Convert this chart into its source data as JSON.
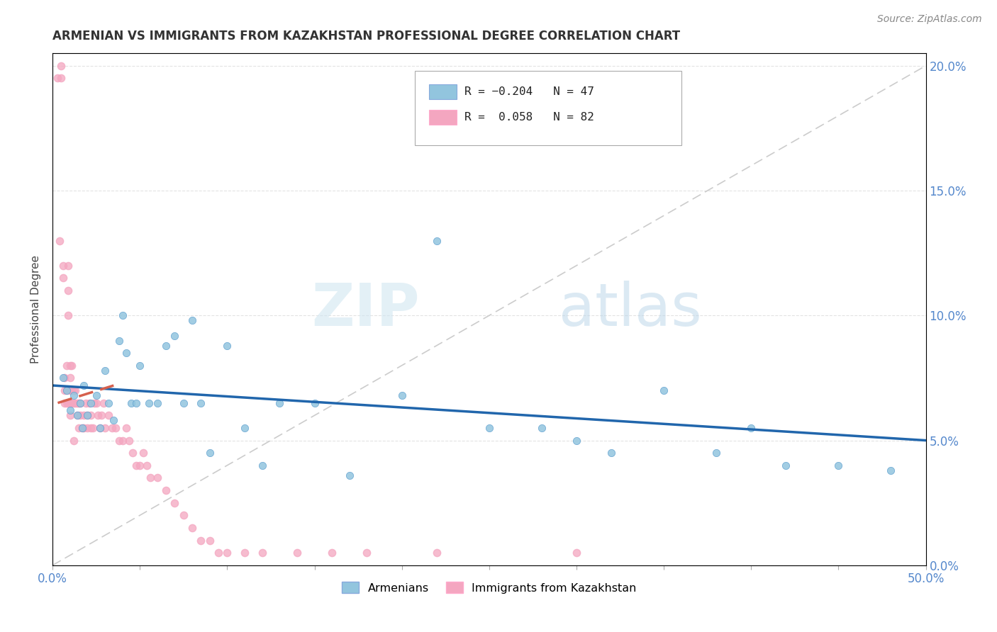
{
  "title": "ARMENIAN VS IMMIGRANTS FROM KAZAKHSTAN PROFESSIONAL DEGREE CORRELATION CHART",
  "source": "Source: ZipAtlas.com",
  "ylabel": "Professional Degree",
  "right_yticklabels": [
    "0.0%",
    "5.0%",
    "10.0%",
    "15.0%",
    "20.0%"
  ],
  "right_yticks": [
    0.0,
    0.05,
    0.1,
    0.15,
    0.2
  ],
  "legend_armenians": "Armenians",
  "legend_kazakhstan": "Immigrants from Kazakhstan",
  "armenian_color": "#92c5de",
  "kazakhstan_color": "#f4a6c0",
  "armenian_trend_color": "#2166ac",
  "kazakhstan_trend_color": "#d6604d",
  "watermark_zip": "ZIP",
  "watermark_atlas": "atlas",
  "xlim": [
    0.0,
    0.5
  ],
  "ylim": [
    0.0,
    0.205
  ],
  "armenians_x": [
    0.006,
    0.008,
    0.01,
    0.012,
    0.014,
    0.016,
    0.017,
    0.018,
    0.02,
    0.022,
    0.025,
    0.027,
    0.03,
    0.032,
    0.035,
    0.038,
    0.04,
    0.042,
    0.045,
    0.048,
    0.05,
    0.055,
    0.06,
    0.065,
    0.07,
    0.075,
    0.08,
    0.085,
    0.09,
    0.1,
    0.11,
    0.12,
    0.13,
    0.15,
    0.17,
    0.2,
    0.22,
    0.25,
    0.28,
    0.3,
    0.32,
    0.35,
    0.38,
    0.4,
    0.42,
    0.45,
    0.48
  ],
  "armenians_y": [
    0.075,
    0.07,
    0.062,
    0.068,
    0.06,
    0.065,
    0.055,
    0.072,
    0.06,
    0.065,
    0.068,
    0.055,
    0.078,
    0.065,
    0.058,
    0.09,
    0.1,
    0.085,
    0.065,
    0.065,
    0.08,
    0.065,
    0.065,
    0.088,
    0.092,
    0.065,
    0.098,
    0.065,
    0.045,
    0.088,
    0.055,
    0.04,
    0.065,
    0.065,
    0.036,
    0.068,
    0.13,
    0.055,
    0.055,
    0.05,
    0.045,
    0.07,
    0.045,
    0.055,
    0.04,
    0.04,
    0.038
  ],
  "kazakhstan_x": [
    0.003,
    0.004,
    0.005,
    0.005,
    0.006,
    0.006,
    0.007,
    0.007,
    0.007,
    0.008,
    0.008,
    0.008,
    0.009,
    0.009,
    0.009,
    0.009,
    0.01,
    0.01,
    0.01,
    0.01,
    0.01,
    0.011,
    0.011,
    0.011,
    0.012,
    0.012,
    0.012,
    0.013,
    0.013,
    0.014,
    0.014,
    0.015,
    0.015,
    0.016,
    0.016,
    0.017,
    0.018,
    0.018,
    0.019,
    0.02,
    0.02,
    0.021,
    0.022,
    0.022,
    0.023,
    0.024,
    0.025,
    0.026,
    0.027,
    0.028,
    0.029,
    0.03,
    0.032,
    0.034,
    0.036,
    0.038,
    0.04,
    0.042,
    0.044,
    0.046,
    0.048,
    0.05,
    0.052,
    0.054,
    0.056,
    0.06,
    0.065,
    0.07,
    0.075,
    0.08,
    0.085,
    0.09,
    0.095,
    0.1,
    0.11,
    0.12,
    0.14,
    0.16,
    0.18,
    0.22,
    0.3
  ],
  "kazakhstan_y": [
    0.195,
    0.13,
    0.2,
    0.195,
    0.12,
    0.115,
    0.065,
    0.07,
    0.075,
    0.08,
    0.065,
    0.07,
    0.065,
    0.1,
    0.11,
    0.12,
    0.065,
    0.07,
    0.075,
    0.08,
    0.06,
    0.07,
    0.08,
    0.065,
    0.065,
    0.07,
    0.05,
    0.065,
    0.07,
    0.065,
    0.06,
    0.055,
    0.065,
    0.065,
    0.06,
    0.055,
    0.055,
    0.06,
    0.065,
    0.055,
    0.06,
    0.065,
    0.055,
    0.06,
    0.055,
    0.065,
    0.065,
    0.06,
    0.055,
    0.06,
    0.065,
    0.055,
    0.06,
    0.055,
    0.055,
    0.05,
    0.05,
    0.055,
    0.05,
    0.045,
    0.04,
    0.04,
    0.045,
    0.04,
    0.035,
    0.035,
    0.03,
    0.025,
    0.02,
    0.015,
    0.01,
    0.01,
    0.005,
    0.005,
    0.005,
    0.005,
    0.005,
    0.005,
    0.005,
    0.005,
    0.005
  ],
  "armenian_trend_x": [
    0.0,
    0.5
  ],
  "armenian_trend_y": [
    0.072,
    0.05
  ],
  "kazakhstan_trend_x": [
    0.003,
    0.035
  ],
  "kazakhstan_trend_y": [
    0.065,
    0.072
  ]
}
